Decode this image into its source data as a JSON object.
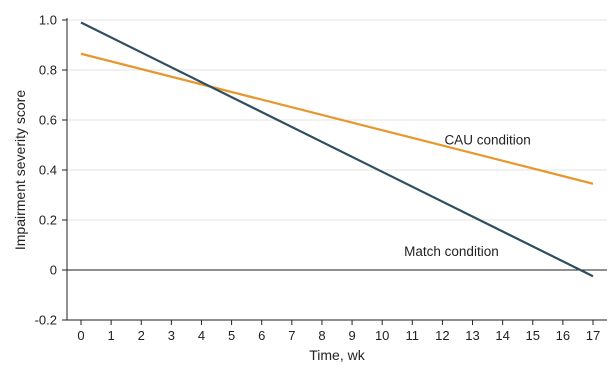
{
  "colors": {
    "background": "#ffffff",
    "grid": "#e3e3e3",
    "axis": "#222222",
    "series_cau": "#e8962e",
    "series_match": "#2f4f5f"
  },
  "chart_data": {
    "type": "line",
    "title": "",
    "xlabel": "Time, wk",
    "ylabel": "Impairment severity score",
    "xlim": [
      0,
      17
    ],
    "ylim": [
      -0.2,
      1.0
    ],
    "x_ticks": [
      0,
      1,
      2,
      3,
      4,
      5,
      6,
      7,
      8,
      9,
      10,
      11,
      12,
      13,
      14,
      15,
      16,
      17
    ],
    "y_ticks": [
      -0.2,
      0,
      0.2,
      0.4,
      0.6,
      0.8,
      1.0
    ],
    "y_tick_labels": [
      "-0.2",
      "0",
      "0.2",
      "0.4",
      "0.6",
      "0.8",
      "1.0"
    ],
    "grid": "horizontal",
    "legend": "none (direct labels)",
    "reference_line_y": 0,
    "series": [
      {
        "name": "CAU condition",
        "x": [
          0,
          17
        ],
        "y": [
          0.865,
          0.345
        ],
        "color": "#e8962e"
      },
      {
        "name": "Match condition",
        "x": [
          0,
          17
        ],
        "y": [
          0.99,
          -0.025
        ],
        "color": "#2f4f5f"
      }
    ],
    "annotations": [
      {
        "text": "CAU condition",
        "x": 13.5,
        "y": 0.52
      },
      {
        "text": "Match condition",
        "x": 12.3,
        "y": 0.075
      }
    ]
  }
}
